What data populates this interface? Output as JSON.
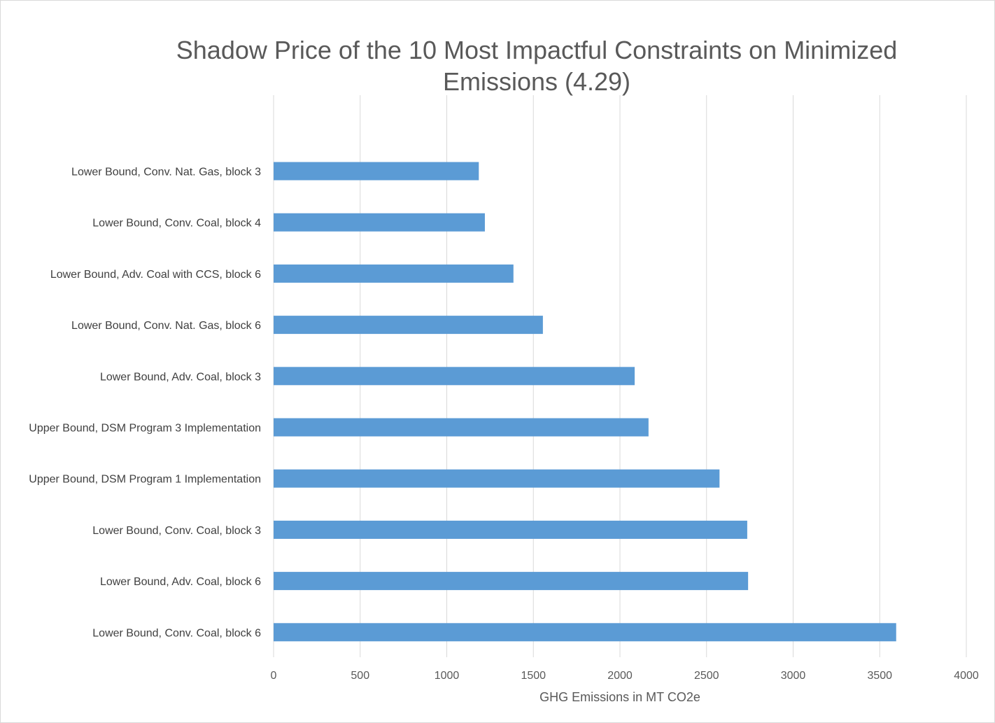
{
  "chart_data": {
    "type": "bar",
    "orientation": "horizontal",
    "title": "Shadow Price of the 10 Most Impactful Constraints on Minimized Emissions (4.29)",
    "xlabel": "GHG Emissions in MT CO2e",
    "ylabel": "",
    "categories": [
      "Lower Bound, Conv. Nat. Gas, block 3",
      "Lower Bound, Conv. Coal, block 4",
      "Lower Bound, Adv. Coal with CCS, block 6",
      "Lower Bound, Conv. Nat. Gas, block 6",
      "Lower Bound, Adv. Coal, block 3",
      "Upper Bound, DSM Program 3 Implementation",
      "Upper Bound, DSM Program 1 Implementation",
      "Lower Bound, Conv. Coal, block 3",
      "Lower Bound, Adv. Coal, block 6",
      "Lower Bound, Conv. Coal, block 6"
    ],
    "values": [
      1185,
      1220,
      1385,
      1555,
      2085,
      2165,
      2575,
      2735,
      2740,
      3595
    ],
    "xlim": [
      0,
      4000
    ],
    "xticks": [
      "0",
      "500",
      "1000",
      "1500",
      "2000",
      "2500",
      "3000",
      "3500",
      "4000"
    ],
    "grid": true,
    "legend": "none",
    "bar_color": "#5b9bd5",
    "grid_color": "#d9d9d9"
  }
}
